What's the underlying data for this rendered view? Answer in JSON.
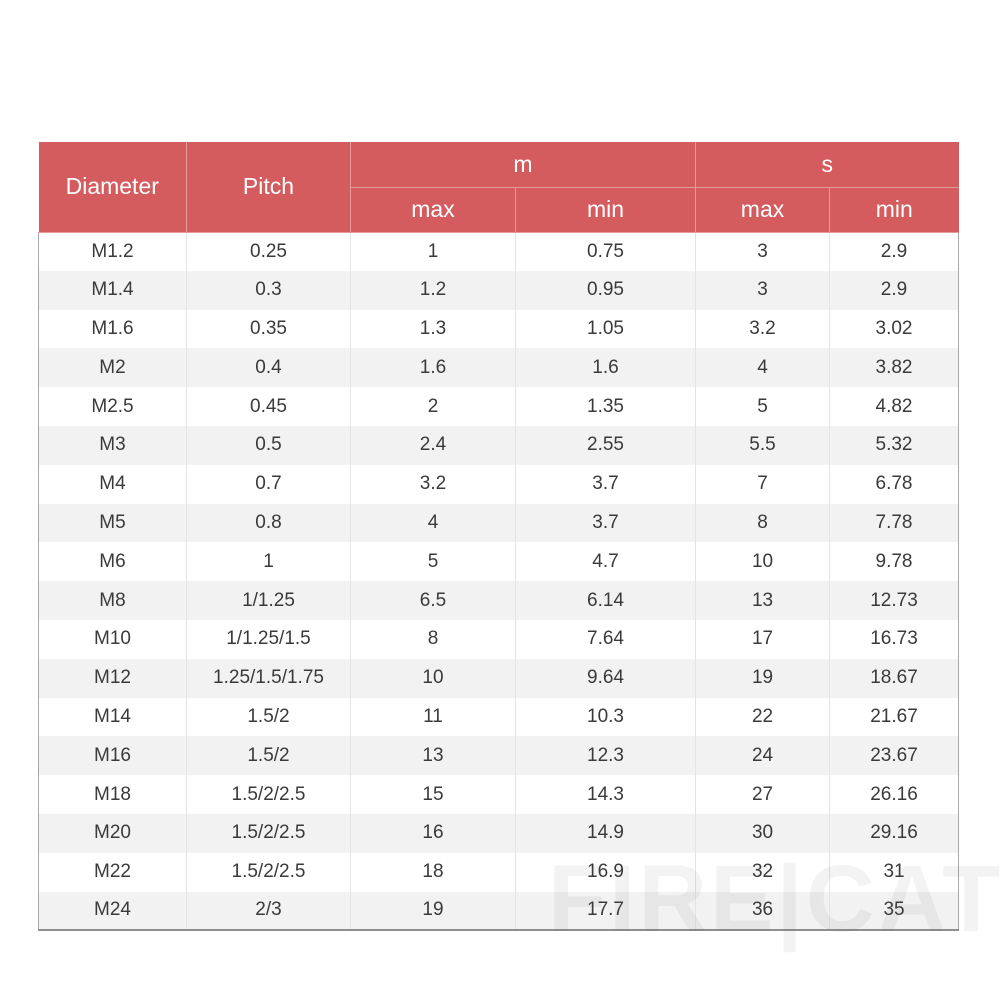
{
  "table": {
    "header": {
      "diameter": "Diameter",
      "pitch": "Pitch",
      "m": "m",
      "s": "s",
      "sub": [
        "max",
        "min",
        "max",
        "min"
      ]
    },
    "rows": [
      [
        "M1.2",
        "0.25",
        "1",
        "0.75",
        "3",
        "2.9"
      ],
      [
        "M1.4",
        "0.3",
        "1.2",
        "0.95",
        "3",
        "2.9"
      ],
      [
        "M1.6",
        "0.35",
        "1.3",
        "1.05",
        "3.2",
        "3.02"
      ],
      [
        "M2",
        "0.4",
        "1.6",
        "1.6",
        "4",
        "3.82"
      ],
      [
        "M2.5",
        "0.45",
        "2",
        "1.35",
        "5",
        "4.82"
      ],
      [
        "M3",
        "0.5",
        "2.4",
        "2.55",
        "5.5",
        "5.32"
      ],
      [
        "M4",
        "0.7",
        "3.2",
        "3.7",
        "7",
        "6.78"
      ],
      [
        "M5",
        "0.8",
        "4",
        "3.7",
        "8",
        "7.78"
      ],
      [
        "M6",
        "1",
        "5",
        "4.7",
        "10",
        "9.78"
      ],
      [
        "M8",
        "1/1.25",
        "6.5",
        "6.14",
        "13",
        "12.73"
      ],
      [
        "M10",
        "1/1.25/1.5",
        "8",
        "7.64",
        "17",
        "16.73"
      ],
      [
        "M12",
        "1.25/1.5/1.75",
        "10",
        "9.64",
        "19",
        "18.67"
      ],
      [
        "M14",
        "1.5/2",
        "11",
        "10.3",
        "22",
        "21.67"
      ],
      [
        "M16",
        "1.5/2",
        "13",
        "12.3",
        "24",
        "23.67"
      ],
      [
        "M18",
        "1.5/2/2.5",
        "15",
        "14.3",
        "27",
        "26.16"
      ],
      [
        "M20",
        "1.5/2/2.5",
        "16",
        "14.9",
        "30",
        "29.16"
      ],
      [
        "M22",
        "1.5/2/2.5",
        "18",
        "16.9",
        "32",
        "31"
      ],
      [
        "M24",
        "2/3",
        "19",
        "17.7",
        "36",
        "35"
      ]
    ]
  },
  "watermark": {
    "text": "FIRE|CAT"
  },
  "colors": {
    "header_bg": "#d45c5e",
    "header_text": "#ffffff",
    "row_alt_bg": "#f2f2f2",
    "cell_text": "#3a3a3a"
  }
}
